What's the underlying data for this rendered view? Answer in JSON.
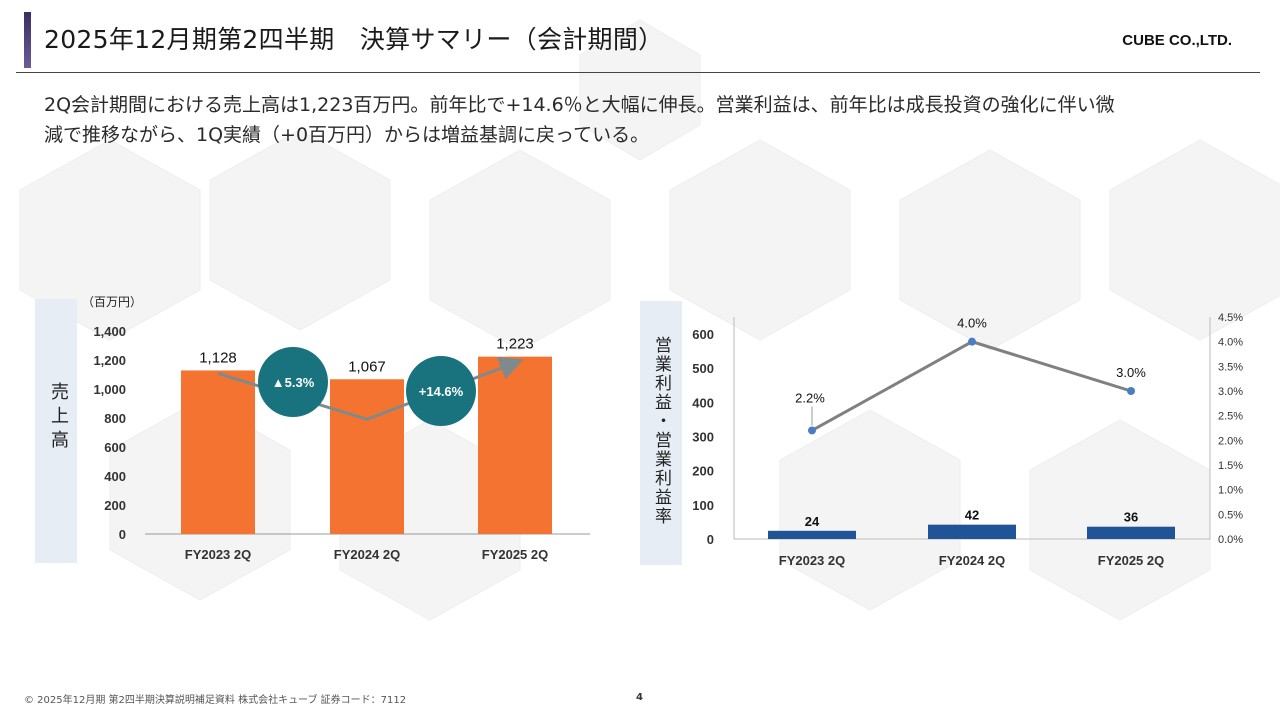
{
  "header": {
    "title": "2025年12月期第2四半期　決算サマリー（会計期間）",
    "company": "CUBE CO.,LTD."
  },
  "summary": {
    "line1": "2Q会計期間における売上高は1,223百万円。前年比で+14.6％と大幅に伸長。営業利益は、前年比は成長投資の強化に伴い微",
    "line2": "減で推移ながら、1Q実績（+0百万円）からは増益基調に戻っている。"
  },
  "left_chart": {
    "side_label": "売上高",
    "unit": "（百万円）"
  },
  "right_chart": {
    "side_label": "営業利益・営業利益率"
  },
  "footer": {
    "text": "© 2025年12月期 第2四半期決算説明補足資料 株式会社キューブ 証券コード：7112",
    "page": "4"
  },
  "chart_data": [
    {
      "type": "bar",
      "categories": [
        "FY2023 2Q",
        "FY2024 2Q",
        "FY2025 2Q"
      ],
      "values": [
        1128,
        1067,
        1223
      ],
      "value_labels": [
        "1,128",
        "1,067",
        "1,223"
      ],
      "ylabel": "売上高",
      "ylim": [
        0,
        1400
      ],
      "yticks": [
        "0",
        "200",
        "400",
        "600",
        "800",
        "1,000",
        "1,200",
        "1,400"
      ],
      "color": "#f47330",
      "annotations": [
        {
          "text": "▲5.3%",
          "from": "FY2023 2Q",
          "to": "FY2024 2Q",
          "color": "#19737f"
        },
        {
          "text": "+14.6%",
          "from": "FY2024 2Q",
          "to": "FY2025 2Q",
          "color": "#19737f"
        }
      ]
    },
    {
      "type": "bar",
      "categories": [
        "FY2023 2Q",
        "FY2024 2Q",
        "FY2025 2Q"
      ],
      "series": [
        {
          "values": [
            24,
            42,
            36
          ],
          "value_labels": [
            "24",
            "42",
            "36"
          ],
          "axis": "left",
          "kind": "bar",
          "color": "#1f5497"
        },
        {
          "values": [
            2.2,
            4.0,
            3.0
          ],
          "value_labels": [
            "2.2%",
            "4.0%",
            "3.0%"
          ],
          "axis": "right",
          "kind": "line",
          "color": "#808080",
          "marker_color": "#4a7ec2"
        }
      ],
      "ylabel": "営業利益・営業利益率",
      "ylim": [
        0,
        650
      ],
      "yticks": [
        "0",
        "100",
        "200",
        "300",
        "400",
        "500",
        "600"
      ],
      "y2lim": [
        0,
        4.5
      ],
      "y2ticks": [
        "0.0%",
        "0.5%",
        "1.0%",
        "1.5%",
        "2.0%",
        "2.5%",
        "3.0%",
        "3.5%",
        "4.0%",
        "4.5%"
      ]
    }
  ]
}
